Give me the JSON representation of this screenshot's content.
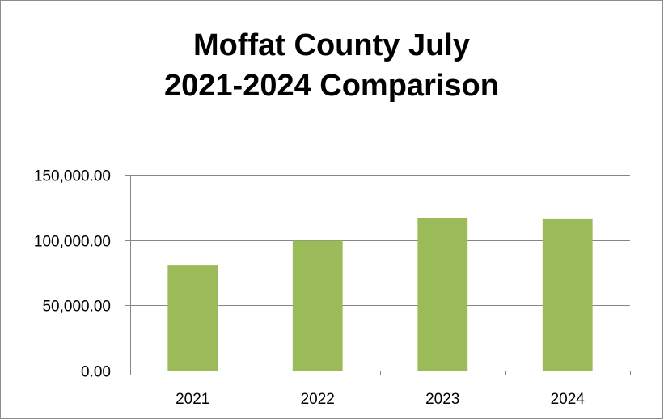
{
  "chart_data": {
    "type": "bar",
    "title_lines": [
      "Moffat County July",
      "2021-2024 Comparison"
    ],
    "categories": [
      "2021",
      "2022",
      "2023",
      "2024"
    ],
    "values": [
      80500,
      99500,
      117000,
      116000
    ],
    "ylim": [
      0,
      150000
    ],
    "yticks": [
      0,
      50000,
      100000,
      150000
    ],
    "ytick_labels": [
      "0.00",
      "50,000.00",
      "100,000.00",
      "150,000.00"
    ],
    "xlabel": "",
    "ylabel": "",
    "grid": true,
    "legend": "none",
    "bar_color": "#9bbb59",
    "grid_color": "#868686"
  }
}
